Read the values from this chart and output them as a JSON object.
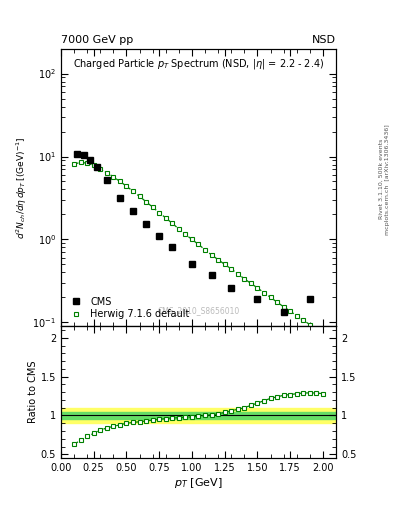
{
  "title_top_left": "7000 GeV pp",
  "title_top_right": "NSD",
  "plot_title": "Charged Particle p$_T$ Spectrum (NSD, |$\\eta$| = 2.2 - 2.4)",
  "ylabel_main": "d$^2$N$_{ch}$/d$\\eta$ dp$_T$ [(GeV)$^{-1}$]",
  "ylabel_ratio": "Ratio to CMS",
  "xlabel": "p$_T$ [GeV]",
  "watermark": "CMS_2010_S8656010",
  "right_label1": "Rivet 3.1.10, 500k events",
  "right_label2": "mcplots.cern.ch  [arXiv:1306.3436]",
  "cms_x": [
    0.125,
    0.175,
    0.225,
    0.275,
    0.35,
    0.45,
    0.55,
    0.65,
    0.75,
    0.85,
    1.0,
    1.15,
    1.3,
    1.5,
    1.7,
    1.9
  ],
  "cms_y": [
    10.8,
    10.3,
    9.0,
    7.4,
    5.2,
    3.2,
    2.2,
    1.55,
    1.1,
    0.82,
    0.5,
    0.37,
    0.26,
    0.19,
    0.135,
    0.19
  ],
  "herwig_x": [
    0.1,
    0.15,
    0.2,
    0.25,
    0.3,
    0.35,
    0.4,
    0.45,
    0.5,
    0.55,
    0.6,
    0.65,
    0.7,
    0.75,
    0.8,
    0.85,
    0.9,
    0.95,
    1.0,
    1.05,
    1.1,
    1.15,
    1.2,
    1.25,
    1.3,
    1.35,
    1.4,
    1.45,
    1.5,
    1.55,
    1.6,
    1.65,
    1.7,
    1.75,
    1.8,
    1.85,
    1.9,
    1.95,
    2.0
  ],
  "herwig_y": [
    8.1,
    8.5,
    8.3,
    7.8,
    7.0,
    6.4,
    5.7,
    5.0,
    4.4,
    3.8,
    3.3,
    2.85,
    2.45,
    2.1,
    1.82,
    1.56,
    1.34,
    1.15,
    1.0,
    0.87,
    0.75,
    0.65,
    0.57,
    0.5,
    0.44,
    0.385,
    0.335,
    0.295,
    0.26,
    0.228,
    0.2,
    0.175,
    0.154,
    0.136,
    0.12,
    0.106,
    0.094,
    0.083,
    0.073
  ],
  "ratio_herwig_x": [
    0.1,
    0.15,
    0.2,
    0.25,
    0.3,
    0.35,
    0.4,
    0.45,
    0.5,
    0.55,
    0.6,
    0.65,
    0.7,
    0.75,
    0.8,
    0.85,
    0.9,
    0.95,
    1.0,
    1.05,
    1.1,
    1.15,
    1.2,
    1.25,
    1.3,
    1.35,
    1.4,
    1.45,
    1.5,
    1.55,
    1.6,
    1.65,
    1.7,
    1.75,
    1.8,
    1.85,
    1.9,
    1.95,
    2.0
  ],
  "ratio_herwig_y": [
    0.63,
    0.68,
    0.73,
    0.77,
    0.81,
    0.84,
    0.86,
    0.88,
    0.9,
    0.91,
    0.92,
    0.93,
    0.94,
    0.95,
    0.96,
    0.97,
    0.97,
    0.98,
    0.98,
    0.99,
    1.0,
    1.01,
    1.02,
    1.04,
    1.06,
    1.08,
    1.1,
    1.13,
    1.16,
    1.19,
    1.22,
    1.24,
    1.26,
    1.27,
    1.28,
    1.29,
    1.29,
    1.29,
    1.28
  ],
  "band_yellow_low": 0.9,
  "band_yellow_high": 1.1,
  "band_green_low": 0.95,
  "band_green_high": 1.05,
  "cms_color": "black",
  "herwig_color": "#008000",
  "xlim": [
    0.0,
    2.1
  ],
  "ylim_main": [
    0.09,
    200.0
  ],
  "ylim_ratio": [
    0.45,
    2.15
  ],
  "background_color": "#ffffff"
}
